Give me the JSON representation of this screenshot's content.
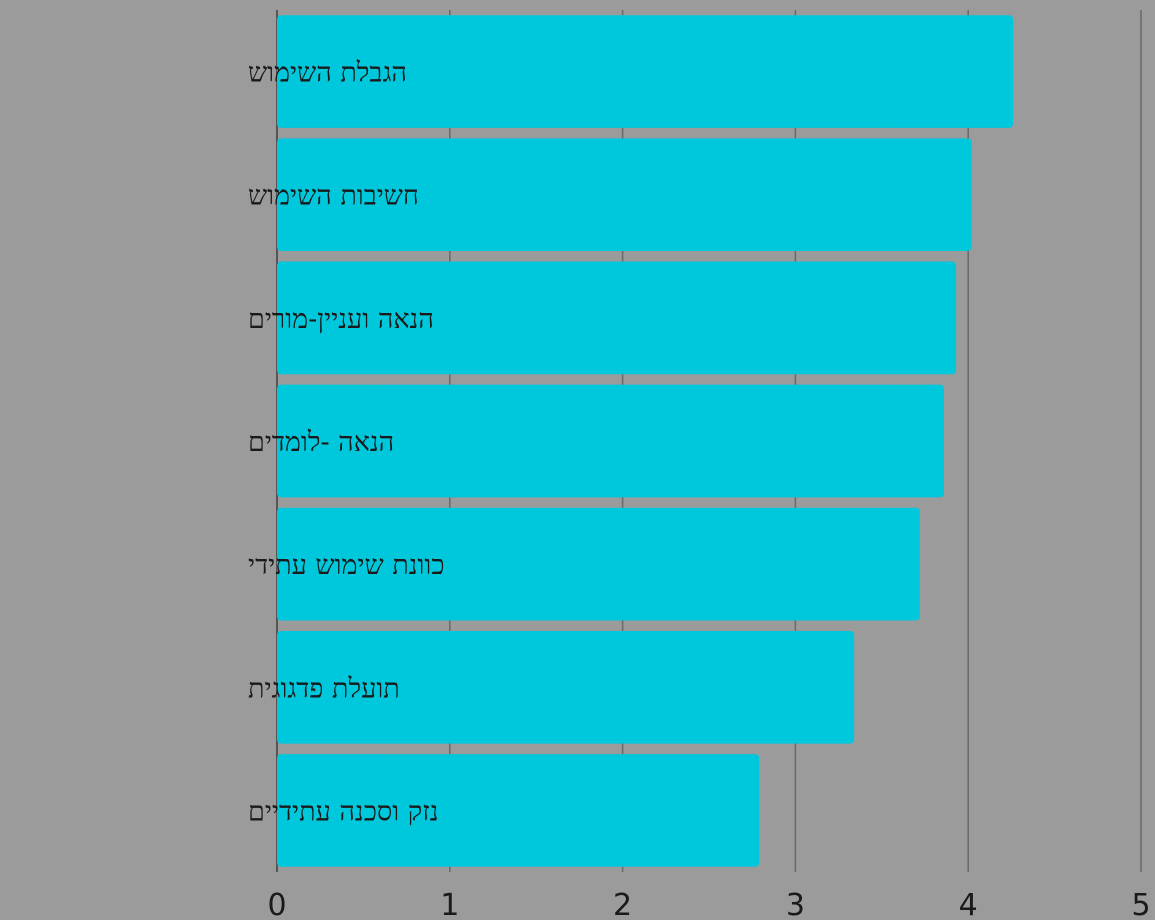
{
  "chart_data": {
    "type": "bar",
    "orientation": "horizontal",
    "categories": [
      "הגבלת השימוש",
      "חשיבות השימוש",
      "הנאה ועניין-מורים",
      "הנאה -לומדים",
      "כוונת שימוש עתידי",
      "תועלת פדגוגית",
      "נזק וסכנה עתידיים"
    ],
    "values": [
      4.26,
      4.02,
      3.93,
      3.86,
      3.72,
      3.34,
      2.79
    ],
    "title": "",
    "xlabel": "",
    "ylabel": "",
    "xlim": [
      0,
      5
    ],
    "xticks": [
      "0",
      "1",
      "2",
      "3",
      "4",
      "5"
    ],
    "grid": "vertical",
    "legend": "none",
    "colors": {
      "bar": "#00c8dc",
      "background": "#9b9b9b",
      "grid": "#6b6b6b",
      "axis": "#555555"
    }
  }
}
